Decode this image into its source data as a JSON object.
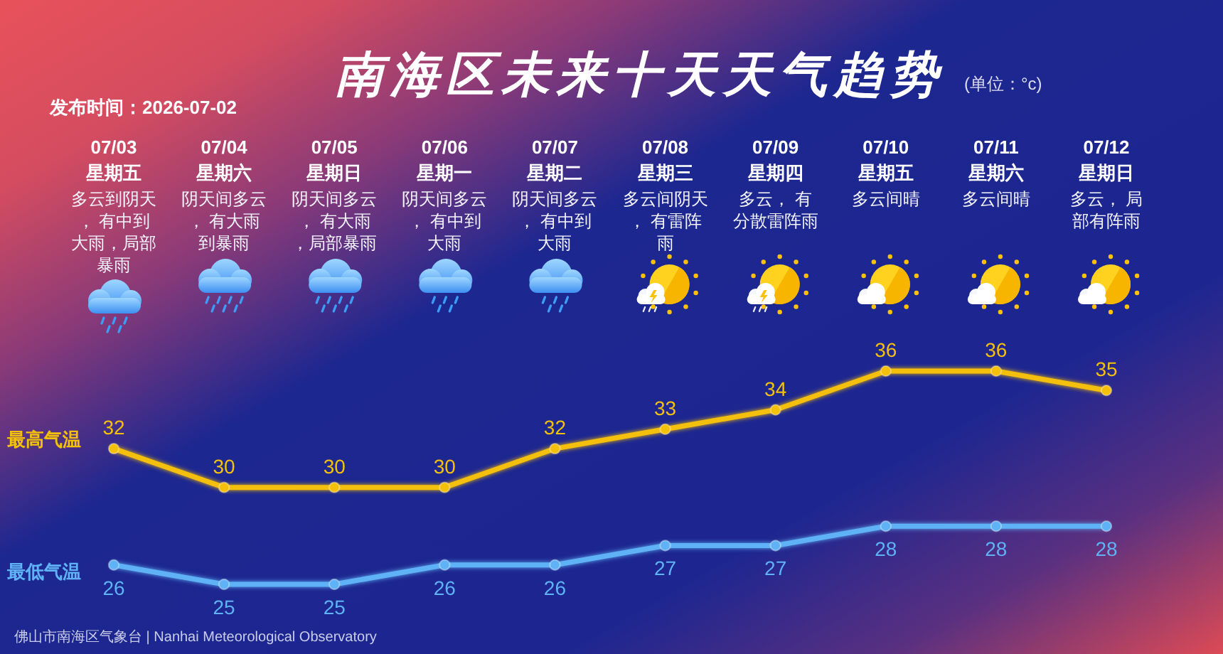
{
  "chart_data": {
    "type": "line",
    "title": "南海区未来十天天气趋势",
    "subtitle": "(单位：°c)",
    "categories": [
      "07/03",
      "07/04",
      "07/05",
      "07/06",
      "07/07",
      "07/08",
      "07/09",
      "07/10",
      "07/11",
      "07/12"
    ],
    "series": [
      {
        "name": "最高气温",
        "color": "#f5c00c",
        "values": [
          32,
          30,
          30,
          30,
          32,
          33,
          34,
          36,
          36,
          35
        ]
      },
      {
        "name": "最低气温",
        "color": "#5fb2f5",
        "values": [
          26,
          25,
          25,
          26,
          26,
          27,
          27,
          28,
          28,
          28
        ]
      }
    ],
    "data_labels": true,
    "marker": "circle",
    "line_style": "solid",
    "tick_labels": "x",
    "annotations": [
      "发布时间：2026-07-02",
      "星期五",
      "多云到阴天， 有中到大雨，局部暴雨",
      "星期六",
      "阴天间多云， 有大雨到暴雨",
      "星期日",
      "阴天间多云， 有大雨，局部暴雨",
      "星期一",
      "阴天间多云， 有中到大雨",
      "星期二",
      "阴天间多云， 有中到大雨",
      "星期三",
      "多云间阴天， 有雷阵雨",
      "星期四",
      "多云， 有分散雷阵雨",
      "星期五",
      "多云间晴",
      "星期六",
      "多云间晴",
      "星期日",
      "多云， 局部有阵雨",
      "佛山市南海区气象台 | Nanhai Meteorological Observatory"
    ]
  }
}
